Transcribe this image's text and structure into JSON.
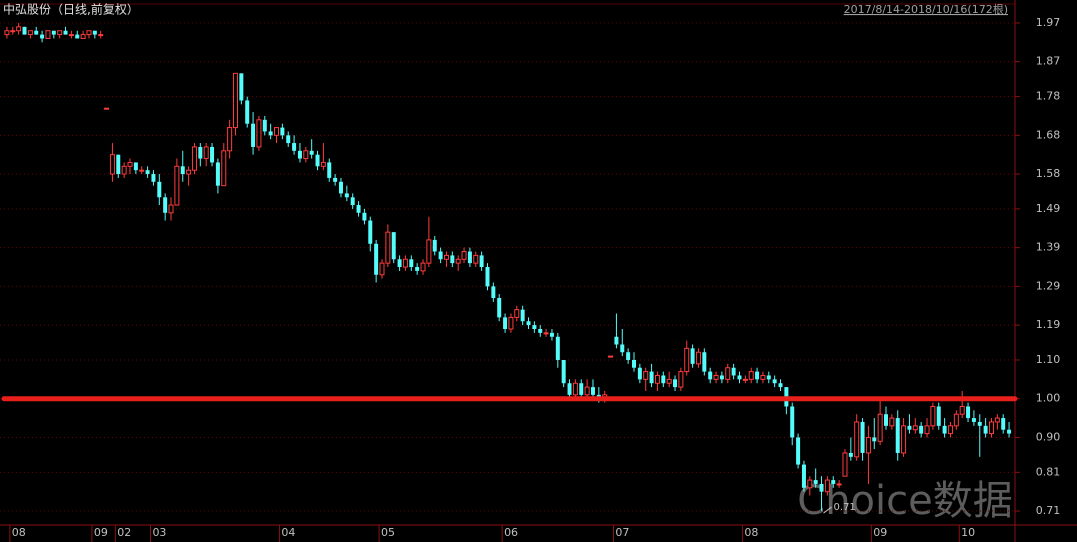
{
  "chart_data": {
    "type": "candlestick",
    "title": "中弘股份（日线,前复权）",
    "range_label": "2017/8/14-2018/10/16(172根)",
    "watermark": "Choice数据",
    "up_color": "#ff3c3c",
    "down_color": "#54fcfc",
    "grid": true,
    "ylim": [
      0.674,
      2.019
    ],
    "yticks": [
      1.97,
      1.87,
      1.78,
      1.68,
      1.58,
      1.49,
      1.39,
      1.29,
      1.19,
      {
        "value": 1.1,
        "label": "1.10"
      },
      {
        "value": 1.0,
        "label": "1.00"
      },
      {
        "value": 0.9,
        "label": "0.90"
      },
      0.81,
      0.71
    ],
    "hline": {
      "value": 1.0,
      "color": "#e8201c"
    },
    "categories": [
      null,
      "08",
      null,
      null,
      null,
      null,
      null,
      null,
      null,
      null,
      null,
      null,
      null,
      null,
      null,
      "09",
      null,
      null,
      null,
      "02",
      null,
      null,
      null,
      null,
      null,
      "03",
      null,
      null,
      null,
      null,
      null,
      null,
      null,
      null,
      null,
      null,
      null,
      null,
      null,
      null,
      null,
      null,
      null,
      null,
      null,
      null,
      null,
      "04",
      null,
      null,
      null,
      null,
      null,
      null,
      null,
      null,
      null,
      null,
      null,
      null,
      null,
      null,
      null,
      null,
      "05",
      null,
      null,
      null,
      null,
      null,
      null,
      null,
      null,
      null,
      null,
      null,
      null,
      null,
      null,
      null,
      null,
      null,
      null,
      null,
      null,
      "06",
      null,
      null,
      null,
      null,
      null,
      null,
      null,
      null,
      null,
      null,
      null,
      null,
      null,
      null,
      null,
      null,
      null,
      null,
      "07",
      null,
      null,
      null,
      null,
      null,
      null,
      null,
      null,
      null,
      null,
      null,
      null,
      null,
      null,
      null,
      null,
      null,
      null,
      null,
      null,
      null,
      "08",
      null,
      null,
      null,
      null,
      null,
      null,
      null,
      null,
      null,
      null,
      null,
      null,
      null,
      null,
      null,
      null,
      null,
      null,
      null,
      null,
      null,
      "09",
      null,
      null,
      null,
      null,
      null,
      null,
      null,
      null,
      null,
      null,
      null,
      null,
      null,
      null,
      "10",
      null,
      null,
      null,
      null,
      null,
      null,
      null,
      null
    ],
    "ohlc": [
      [
        1.94,
        1.96,
        1.93,
        1.95
      ],
      [
        1.95,
        1.96,
        1.94,
        1.95
      ],
      [
        1.95,
        1.97,
        1.94,
        1.96
      ],
      [
        1.96,
        1.96,
        1.94,
        1.94
      ],
      [
        1.94,
        1.95,
        1.93,
        1.95
      ],
      [
        1.95,
        1.96,
        1.94,
        1.94
      ],
      [
        1.94,
        1.95,
        1.92,
        1.93
      ],
      [
        1.93,
        1.95,
        1.93,
        1.95
      ],
      [
        1.95,
        1.95,
        1.93,
        1.94
      ],
      [
        1.94,
        1.95,
        1.93,
        1.95
      ],
      [
        1.95,
        1.96,
        1.94,
        1.94
      ],
      [
        1.94,
        1.95,
        1.93,
        1.94
      ],
      [
        1.94,
        1.95,
        1.93,
        1.93
      ],
      [
        1.93,
        1.95,
        1.93,
        1.94
      ],
      [
        1.94,
        1.95,
        1.93,
        1.95
      ],
      [
        1.95,
        1.95,
        1.93,
        1.94
      ],
      [
        1.94,
        1.95,
        1.93,
        1.94
      ],
      [
        1.75,
        1.75,
        1.75,
        1.75
      ],
      [
        1.58,
        1.66,
        1.56,
        1.63
      ],
      [
        1.63,
        1.63,
        1.57,
        1.58
      ],
      [
        1.58,
        1.61,
        1.57,
        1.6
      ],
      [
        1.6,
        1.62,
        1.58,
        1.61
      ],
      [
        1.61,
        1.61,
        1.58,
        1.59
      ],
      [
        1.59,
        1.6,
        1.58,
        1.59
      ],
      [
        1.59,
        1.6,
        1.57,
        1.58
      ],
      [
        1.58,
        1.59,
        1.55,
        1.56
      ],
      [
        1.56,
        1.58,
        1.5,
        1.52
      ],
      [
        1.52,
        1.53,
        1.46,
        1.48
      ],
      [
        1.48,
        1.52,
        1.46,
        1.5
      ],
      [
        1.5,
        1.62,
        1.5,
        1.6
      ],
      [
        1.6,
        1.64,
        1.56,
        1.58
      ],
      [
        1.58,
        1.6,
        1.55,
        1.59
      ],
      [
        1.59,
        1.66,
        1.58,
        1.65
      ],
      [
        1.65,
        1.66,
        1.6,
        1.62
      ],
      [
        1.62,
        1.66,
        1.6,
        1.65
      ],
      [
        1.65,
        1.66,
        1.6,
        1.61
      ],
      [
        1.61,
        1.62,
        1.53,
        1.55
      ],
      [
        1.55,
        1.66,
        1.55,
        1.64
      ],
      [
        1.64,
        1.72,
        1.62,
        1.7
      ],
      [
        1.7,
        1.84,
        1.68,
        1.84
      ],
      [
        1.84,
        1.84,
        1.76,
        1.77
      ],
      [
        1.77,
        1.78,
        1.7,
        1.71
      ],
      [
        1.71,
        1.74,
        1.63,
        1.65
      ],
      [
        1.65,
        1.73,
        1.64,
        1.72
      ],
      [
        1.72,
        1.73,
        1.68,
        1.69
      ],
      [
        1.69,
        1.71,
        1.67,
        1.68
      ],
      [
        1.68,
        1.7,
        1.66,
        1.7
      ],
      [
        1.7,
        1.71,
        1.67,
        1.68
      ],
      [
        1.68,
        1.69,
        1.65,
        1.66
      ],
      [
        1.66,
        1.68,
        1.63,
        1.64
      ],
      [
        1.64,
        1.66,
        1.61,
        1.62
      ],
      [
        1.62,
        1.65,
        1.61,
        1.64
      ],
      [
        1.64,
        1.67,
        1.62,
        1.63
      ],
      [
        1.63,
        1.64,
        1.59,
        1.6
      ],
      [
        1.6,
        1.66,
        1.59,
        1.61
      ],
      [
        1.61,
        1.62,
        1.56,
        1.57
      ],
      [
        1.57,
        1.58,
        1.55,
        1.56
      ],
      [
        1.56,
        1.57,
        1.52,
        1.53
      ],
      [
        1.53,
        1.55,
        1.51,
        1.52
      ],
      [
        1.52,
        1.53,
        1.49,
        1.5
      ],
      [
        1.5,
        1.51,
        1.47,
        1.48
      ],
      [
        1.48,
        1.49,
        1.45,
        1.46
      ],
      [
        1.46,
        1.47,
        1.38,
        1.4
      ],
      [
        1.4,
        1.41,
        1.3,
        1.32
      ],
      [
        1.32,
        1.36,
        1.31,
        1.35
      ],
      [
        1.35,
        1.45,
        1.34,
        1.43
      ],
      [
        1.43,
        1.43,
        1.35,
        1.36
      ],
      [
        1.36,
        1.37,
        1.33,
        1.34
      ],
      [
        1.34,
        1.37,
        1.33,
        1.36
      ],
      [
        1.36,
        1.37,
        1.33,
        1.34
      ],
      [
        1.34,
        1.35,
        1.32,
        1.33
      ],
      [
        1.33,
        1.36,
        1.32,
        1.35
      ],
      [
        1.35,
        1.47,
        1.34,
        1.41
      ],
      [
        1.41,
        1.42,
        1.37,
        1.38
      ],
      [
        1.38,
        1.39,
        1.35,
        1.36
      ],
      [
        1.36,
        1.38,
        1.34,
        1.37
      ],
      [
        1.37,
        1.38,
        1.34,
        1.35
      ],
      [
        1.35,
        1.37,
        1.33,
        1.36
      ],
      [
        1.36,
        1.39,
        1.35,
        1.38
      ],
      [
        1.38,
        1.39,
        1.34,
        1.35
      ],
      [
        1.35,
        1.38,
        1.34,
        1.37
      ],
      [
        1.37,
        1.38,
        1.33,
        1.34
      ],
      [
        1.34,
        1.35,
        1.28,
        1.29
      ],
      [
        1.29,
        1.3,
        1.25,
        1.26
      ],
      [
        1.26,
        1.27,
        1.2,
        1.21
      ],
      [
        1.21,
        1.22,
        1.17,
        1.18
      ],
      [
        1.18,
        1.22,
        1.17,
        1.21
      ],
      [
        1.21,
        1.24,
        1.2,
        1.23
      ],
      [
        1.23,
        1.24,
        1.19,
        1.2
      ],
      [
        1.2,
        1.21,
        1.18,
        1.19
      ],
      [
        1.19,
        1.2,
        1.17,
        1.18
      ],
      [
        1.18,
        1.19,
        1.16,
        1.17
      ],
      [
        1.17,
        1.18,
        1.16,
        1.17
      ],
      [
        1.17,
        1.18,
        1.15,
        1.16
      ],
      [
        1.16,
        1.17,
        1.08,
        1.1
      ],
      [
        1.1,
        1.1,
        1.03,
        1.04
      ],
      [
        1.04,
        1.05,
        1.0,
        1.01
      ],
      [
        1.01,
        1.05,
        1.0,
        1.04
      ],
      [
        1.04,
        1.05,
        1.0,
        1.01
      ],
      [
        1.01,
        1.05,
        1.0,
        1.03
      ],
      [
        1.03,
        1.05,
        1.0,
        1.01
      ],
      [
        1.01,
        1.03,
        0.99,
        1.0
      ],
      [
        1.0,
        1.02,
        0.99,
        1.01
      ],
      [
        1.11,
        1.11,
        1.11,
        1.11
      ],
      [
        1.16,
        1.22,
        1.13,
        1.14
      ],
      [
        1.14,
        1.18,
        1.11,
        1.12
      ],
      [
        1.12,
        1.13,
        1.09,
        1.1
      ],
      [
        1.1,
        1.12,
        1.07,
        1.08
      ],
      [
        1.08,
        1.09,
        1.04,
        1.05
      ],
      [
        1.05,
        1.08,
        1.02,
        1.07
      ],
      [
        1.07,
        1.09,
        1.03,
        1.04
      ],
      [
        1.04,
        1.07,
        1.02,
        1.06
      ],
      [
        1.06,
        1.07,
        1.03,
        1.04
      ],
      [
        1.04,
        1.07,
        1.03,
        1.05
      ],
      [
        1.05,
        1.06,
        1.02,
        1.03
      ],
      [
        1.03,
        1.08,
        1.02,
        1.07
      ],
      [
        1.07,
        1.15,
        1.06,
        1.13
      ],
      [
        1.13,
        1.14,
        1.08,
        1.09
      ],
      [
        1.09,
        1.13,
        1.08,
        1.12
      ],
      [
        1.12,
        1.13,
        1.06,
        1.07
      ],
      [
        1.07,
        1.08,
        1.04,
        1.05
      ],
      [
        1.05,
        1.07,
        1.04,
        1.06
      ],
      [
        1.06,
        1.07,
        1.04,
        1.05
      ],
      [
        1.05,
        1.09,
        1.04,
        1.08
      ],
      [
        1.08,
        1.09,
        1.05,
        1.06
      ],
      [
        1.06,
        1.07,
        1.04,
        1.05
      ],
      [
        1.05,
        1.06,
        1.04,
        1.05
      ],
      [
        1.05,
        1.08,
        1.04,
        1.07
      ],
      [
        1.07,
        1.08,
        1.04,
        1.05
      ],
      [
        1.05,
        1.07,
        1.04,
        1.06
      ],
      [
        1.06,
        1.07,
        1.04,
        1.05
      ],
      [
        1.05,
        1.06,
        1.03,
        1.04
      ],
      [
        1.04,
        1.05,
        1.02,
        1.03
      ],
      [
        1.03,
        1.03,
        0.96,
        0.98
      ],
      [
        0.98,
        0.99,
        0.88,
        0.9
      ],
      [
        0.9,
        0.91,
        0.82,
        0.83
      ],
      [
        0.83,
        0.84,
        0.76,
        0.77
      ],
      [
        0.77,
        0.8,
        0.75,
        0.79
      ],
      [
        0.79,
        0.82,
        0.77,
        0.78
      ],
      [
        0.78,
        0.8,
        0.71,
        0.76
      ],
      [
        0.76,
        0.8,
        0.75,
        0.79
      ],
      [
        0.79,
        0.8,
        0.77,
        0.78
      ],
      [
        0.78,
        0.79,
        0.77,
        0.78
      ],
      [
        0.8,
        0.87,
        0.8,
        0.86
      ],
      [
        0.86,
        0.9,
        0.84,
        0.85
      ],
      [
        0.85,
        0.96,
        0.84,
        0.94
      ],
      [
        0.94,
        0.95,
        0.84,
        0.86
      ],
      [
        0.86,
        0.93,
        0.78,
        0.9
      ],
      [
        0.9,
        0.95,
        0.87,
        0.89
      ],
      [
        0.89,
        1.0,
        0.88,
        0.96
      ],
      [
        0.96,
        0.98,
        0.92,
        0.93
      ],
      [
        0.93,
        0.96,
        0.92,
        0.95
      ],
      [
        0.95,
        0.97,
        0.84,
        0.86
      ],
      [
        0.86,
        0.95,
        0.85,
        0.93
      ],
      [
        0.93,
        0.96,
        0.91,
        0.92
      ],
      [
        0.92,
        0.95,
        0.91,
        0.93
      ],
      [
        0.93,
        0.94,
        0.9,
        0.91
      ],
      [
        0.91,
        0.95,
        0.9,
        0.93
      ],
      [
        0.93,
        0.99,
        0.92,
        0.98
      ],
      [
        0.98,
        0.99,
        0.92,
        0.93
      ],
      [
        0.93,
        0.95,
        0.9,
        0.91
      ],
      [
        0.91,
        0.94,
        0.9,
        0.93
      ],
      [
        0.93,
        0.97,
        0.92,
        0.96
      ],
      [
        0.96,
        1.02,
        0.95,
        0.98
      ],
      [
        0.98,
        0.99,
        0.94,
        0.95
      ],
      [
        0.95,
        0.97,
        0.93,
        0.94
      ],
      [
        0.94,
        0.96,
        0.85,
        0.93
      ],
      [
        0.93,
        0.95,
        0.9,
        0.91
      ],
      [
        0.91,
        0.95,
        0.9,
        0.94
      ],
      [
        0.94,
        0.96,
        0.92,
        0.95
      ],
      [
        0.95,
        0.96,
        0.91,
        0.92
      ],
      [
        0.92,
        0.94,
        0.9,
        0.91
      ]
    ],
    "low_index": 139
  }
}
